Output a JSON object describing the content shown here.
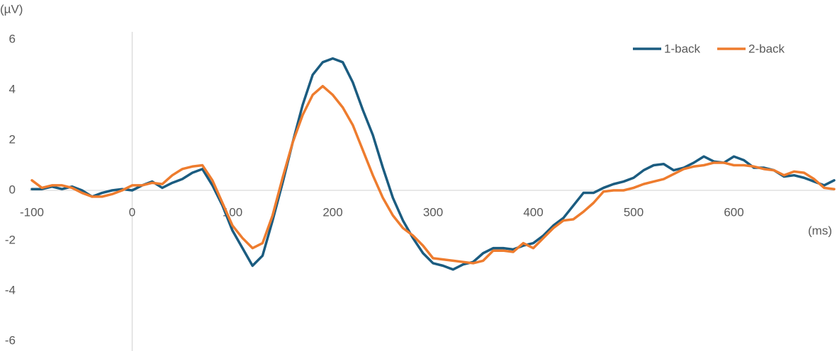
{
  "chart_data": {
    "type": "line",
    "y_label": "(µV)",
    "x_label": "(ms)",
    "x": [
      -100,
      -90,
      -80,
      -70,
      -60,
      -50,
      -40,
      -30,
      -20,
      -10,
      0,
      10,
      20,
      30,
      40,
      50,
      60,
      70,
      80,
      90,
      100,
      110,
      120,
      130,
      140,
      150,
      160,
      170,
      180,
      190,
      200,
      210,
      220,
      230,
      240,
      250,
      260,
      270,
      280,
      290,
      300,
      310,
      320,
      330,
      340,
      350,
      360,
      370,
      380,
      390,
      400,
      410,
      420,
      430,
      440,
      450,
      460,
      470,
      480,
      490,
      500,
      510,
      520,
      530,
      540,
      550,
      560,
      570,
      580,
      590,
      600,
      610,
      620,
      630,
      640,
      650,
      660,
      670,
      680,
      690,
      700
    ],
    "series": [
      {
        "name": "1-back",
        "color": "#1b5c80",
        "values": [
          0.05,
          0.05,
          0.15,
          0.05,
          0.15,
          0.0,
          -0.25,
          -0.1,
          0.0,
          0.05,
          0.0,
          0.2,
          0.35,
          0.1,
          0.3,
          0.45,
          0.7,
          0.85,
          0.2,
          -0.6,
          -1.6,
          -2.3,
          -3.0,
          -2.6,
          -1.2,
          0.3,
          1.9,
          3.4,
          4.6,
          5.1,
          5.25,
          5.1,
          4.3,
          3.2,
          2.2,
          0.9,
          -0.3,
          -1.2,
          -1.9,
          -2.5,
          -2.9,
          -3.0,
          -3.15,
          -2.95,
          -2.85,
          -2.5,
          -2.3,
          -2.3,
          -2.35,
          -2.2,
          -2.1,
          -1.8,
          -1.4,
          -1.1,
          -0.6,
          -0.1,
          -0.1,
          0.1,
          0.25,
          0.35,
          0.5,
          0.8,
          1.0,
          1.05,
          0.8,
          0.9,
          1.1,
          1.35,
          1.15,
          1.1,
          1.35,
          1.2,
          0.9,
          0.9,
          0.8,
          0.55,
          0.6,
          0.5,
          0.35,
          0.2,
          0.4
        ]
      },
      {
        "name": "2-back",
        "color": "#ee7c2e",
        "values": [
          0.4,
          0.1,
          0.2,
          0.2,
          0.1,
          -0.1,
          -0.25,
          -0.25,
          -0.15,
          0.0,
          0.2,
          0.2,
          0.3,
          0.25,
          0.6,
          0.85,
          0.95,
          1.0,
          0.4,
          -0.5,
          -1.4,
          -1.9,
          -2.3,
          -2.1,
          -1.0,
          0.5,
          1.9,
          3.0,
          3.8,
          4.15,
          3.8,
          3.3,
          2.6,
          1.6,
          0.6,
          -0.3,
          -1.0,
          -1.5,
          -1.8,
          -2.2,
          -2.7,
          -2.75,
          -2.8,
          -2.85,
          -2.9,
          -2.8,
          -2.4,
          -2.4,
          -2.45,
          -2.1,
          -2.3,
          -1.9,
          -1.5,
          -1.2,
          -1.15,
          -0.85,
          -0.5,
          -0.05,
          0.0,
          0.0,
          0.1,
          0.25,
          0.35,
          0.45,
          0.65,
          0.85,
          0.95,
          1.0,
          1.1,
          1.1,
          1.0,
          1.0,
          0.95,
          0.85,
          0.8,
          0.6,
          0.75,
          0.7,
          0.45,
          0.1,
          0.05
        ]
      }
    ],
    "xlim": [
      -100,
      700
    ],
    "xticks": [
      -100,
      0,
      100,
      200,
      300,
      400,
      500,
      600
    ],
    "ylim": [
      -6,
      6
    ],
    "yticks": [
      -6,
      -4,
      -2,
      0,
      2,
      4,
      6
    ],
    "legend": "top-right",
    "grid": false
  }
}
